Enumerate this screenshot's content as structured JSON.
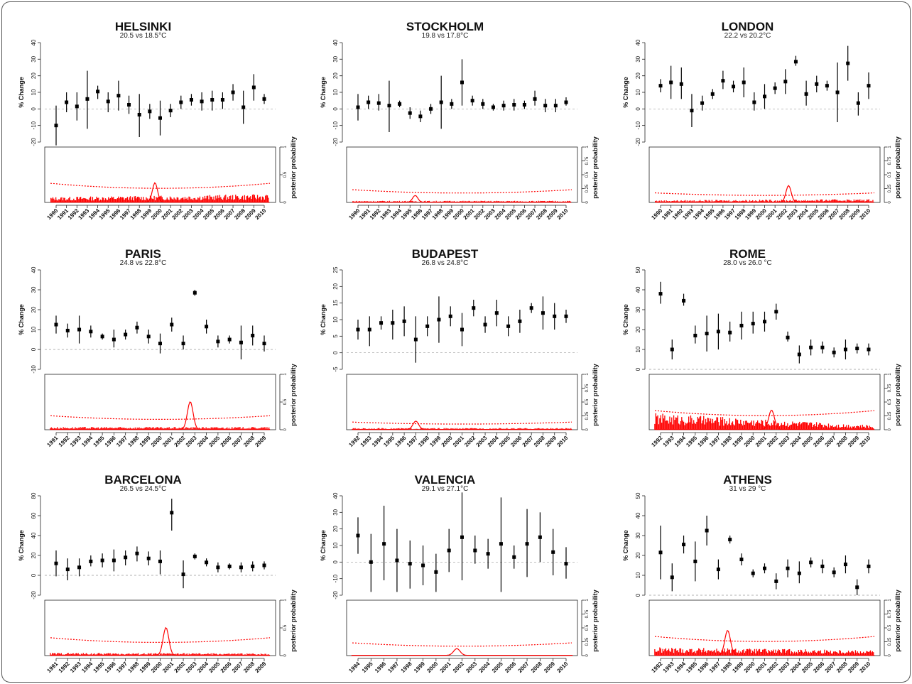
{
  "figure": {
    "color_estimate": "#000000",
    "color_posterior": "#ff0000"
  },
  "chart_data": [
    {
      "type": "scatter",
      "title": "HELSINKI",
      "subtitle": "20.5 vs 18.5°C",
      "ylabel": "% Change",
      "y2label": "posterior probability",
      "ylim": [
        -20,
        40
      ],
      "yticks": [
        "-20",
        "-10",
        "0",
        "10",
        "20",
        "30",
        "40"
      ],
      "yticks_values": [
        -20,
        -10,
        0,
        10,
        20,
        30,
        40
      ],
      "y2ticks": [
        "0",
        "0.5",
        "1"
      ],
      "y2ticks_values": [
        0,
        0.5,
        1
      ],
      "x": [
        "1990",
        "1991",
        "1992",
        "1993",
        "1994",
        "1995",
        "1996",
        "1997",
        "1998",
        "1999",
        "2000",
        "2001",
        "2002",
        "2003",
        "2004",
        "2005",
        "2006",
        "2007",
        "2008",
        "2009",
        "2010"
      ],
      "estimate": [
        -10,
        4,
        1.5,
        6,
        10.5,
        4.5,
        8,
        2.5,
        -3.5,
        -1.5,
        -5.5,
        -1,
        4,
        5.5,
        4.5,
        5.5,
        5.5,
        10,
        1,
        13,
        6
      ],
      "lower": [
        -22,
        -2,
        -7,
        -12,
        6,
        -2,
        -1,
        -3,
        -17,
        -6,
        -16,
        -5,
        0,
        2,
        -1,
        -1,
        0,
        5,
        -9,
        5,
        3
      ],
      "upper": [
        2,
        10,
        10,
        23,
        14,
        10,
        17,
        8,
        9,
        3,
        5,
        3,
        8,
        9,
        10,
        11,
        10,
        15,
        11,
        21,
        9
      ],
      "posterior_peak_year": 1999.5,
      "posterior_peak": 0.35,
      "posterior_threshold": 0.3,
      "posterior_noise": 0.1,
      "posterior_noise_end": 0.15
    },
    {
      "type": "scatter",
      "title": "STOCKHOLM",
      "subtitle": "19.8 vs 17.8°C",
      "ylabel": "% Change",
      "y2label": "posterior probability",
      "ylim": [
        -20,
        40
      ],
      "yticks": [
        "-20",
        "-10",
        "0",
        "10",
        "20",
        "30",
        "40"
      ],
      "yticks_values": [
        -20,
        -10,
        0,
        10,
        20,
        30,
        40
      ],
      "y2ticks": [
        "0",
        "0.25",
        "0.5",
        "0.75",
        "1"
      ],
      "y2ticks_values": [
        0,
        0.25,
        0.5,
        0.75,
        1
      ],
      "x": [
        "1990",
        "1991",
        "1992",
        "1993",
        "1994",
        "1995",
        "1996",
        "1997",
        "1998",
        "1999",
        "2000",
        "2001",
        "2002",
        "2003",
        "2004",
        "2005",
        "2006",
        "2007",
        "2008",
        "2009",
        "2010"
      ],
      "estimate": [
        1,
        4,
        3.5,
        2,
        3,
        -2.5,
        -4.5,
        0,
        4,
        3,
        16,
        5,
        3,
        1,
        2,
        2.5,
        2.5,
        6,
        2,
        2,
        4
      ],
      "lower": [
        -7,
        0,
        -1,
        -14,
        1,
        -6,
        -8,
        -3,
        -12,
        0,
        2,
        2,
        0,
        -1,
        -1,
        -1,
        0,
        2,
        -2,
        -2,
        2
      ],
      "upper": [
        9,
        8,
        9,
        17,
        5,
        1,
        -1,
        3,
        20,
        6,
        30,
        8,
        6,
        3,
        5,
        6,
        5,
        11,
        6,
        6,
        7
      ],
      "posterior_peak_year": 1995.5,
      "posterior_peak": 0.12,
      "posterior_threshold": 0.2,
      "posterior_noise": 0.03,
      "posterior_noise_end": 0.03
    },
    {
      "type": "scatter",
      "title": "LONDON",
      "subtitle": "22.2 vs 20.2°C",
      "ylabel": "% Change",
      "y2label": "posterior probability",
      "ylim": [
        -20,
        40
      ],
      "yticks": [
        "-20",
        "-10",
        "0",
        "10",
        "20",
        "30",
        "40"
      ],
      "yticks_values": [
        -20,
        -10,
        0,
        10,
        20,
        30,
        40
      ],
      "y2ticks": [
        "0",
        "0.25",
        "0.5",
        "0.75",
        "1"
      ],
      "y2ticks_values": [
        0,
        0.25,
        0.5,
        0.75,
        1
      ],
      "x": [
        "1990",
        "1991",
        "1992",
        "1993",
        "1994",
        "1995",
        "1996",
        "1997",
        "1998",
        "1999",
        "2000",
        "2001",
        "2002",
        "2003",
        "2004",
        "2005",
        "2006",
        "2007",
        "2008",
        "2009",
        "2010"
      ],
      "estimate": [
        14,
        16,
        15,
        -1,
        3.5,
        9,
        17,
        13.5,
        16,
        4,
        7.5,
        12.5,
        16.5,
        28.5,
        9,
        15,
        14,
        10,
        27.5,
        3.5,
        14
      ],
      "lower": [
        10,
        6,
        6,
        -11,
        -1,
        6,
        12,
        10,
        7,
        -1,
        0,
        9,
        9,
        26,
        2,
        10,
        11,
        -8,
        17,
        -4,
        6
      ],
      "upper": [
        18,
        26,
        25,
        9,
        8,
        12,
        23,
        17,
        25,
        10,
        15,
        16,
        24,
        32,
        17,
        20,
        17,
        28,
        38,
        10,
        22
      ],
      "posterior_peak_year": 2002.3,
      "posterior_peak": 0.3,
      "posterior_threshold": 0.15,
      "posterior_noise": 0.04,
      "posterior_noise_end": 0.06
    },
    {
      "type": "scatter",
      "title": "PARIS",
      "subtitle": "24.8 vs 22.8°C",
      "ylabel": "% Change",
      "y2label": "posterior probability",
      "ylim": [
        -10,
        40
      ],
      "yticks": [
        "-10",
        "0",
        "10",
        "20",
        "30",
        "40"
      ],
      "yticks_values": [
        -10,
        0,
        10,
        20,
        30,
        40
      ],
      "y2ticks": [
        "0",
        "0.5",
        "1"
      ],
      "y2ticks_values": [
        0,
        0.5,
        1
      ],
      "x": [
        "1991",
        "1992",
        "1993",
        "1994",
        "1995",
        "1996",
        "1997",
        "1998",
        "1999",
        "2000",
        "2001",
        "2002",
        "2003",
        "2004",
        "2005",
        "2006",
        "2007",
        "2008",
        "2009"
      ],
      "estimate": [
        12.5,
        9.5,
        10,
        9,
        6.5,
        5,
        7.5,
        11,
        6.5,
        3,
        12.5,
        3,
        28.5,
        11.5,
        4,
        5,
        3.5,
        7,
        3
      ],
      "lower": [
        8,
        6,
        3,
        6,
        5,
        1,
        5,
        8,
        3,
        -2,
        9,
        0,
        27,
        8,
        1,
        3,
        -5,
        2,
        -1
      ],
      "upper": [
        17,
        13,
        17,
        12,
        8,
        10,
        10,
        14,
        10,
        8,
        16,
        7,
        30,
        15,
        7,
        7,
        12,
        12,
        7
      ],
      "posterior_peak_year": 2002.6,
      "posterior_peak": 0.5,
      "posterior_threshold": 0.22,
      "posterior_noise": 0.05,
      "posterior_noise_end": 0.05
    },
    {
      "type": "scatter",
      "title": "BUDAPEST",
      "subtitle": "26.8 vs 24.8°C",
      "ylabel": "% Change",
      "y2label": "posterior probability",
      "ylim": [
        -5,
        25
      ],
      "yticks": [
        "-5",
        "0",
        "5",
        "10",
        "15",
        "20",
        "25"
      ],
      "yticks_values": [
        -5,
        0,
        5,
        10,
        15,
        20,
        25
      ],
      "y2ticks": [
        "0",
        "0.25",
        "0.5",
        "0.75",
        "1"
      ],
      "y2ticks_values": [
        0,
        0.25,
        0.5,
        0.75,
        1
      ],
      "x": [
        "1992",
        "1993",
        "1994",
        "1995",
        "1996",
        "1997",
        "1998",
        "1999",
        "2000",
        "2001",
        "2002",
        "2003",
        "2004",
        "2005",
        "2006",
        "2007",
        "2008",
        "2009",
        "2010"
      ],
      "estimate": [
        7,
        7,
        9,
        9,
        9.5,
        4,
        8,
        10,
        11,
        7,
        13.5,
        8.5,
        12,
        8,
        9.5,
        13.5,
        12,
        11,
        11
      ],
      "lower": [
        4,
        2,
        7,
        4,
        5,
        -3,
        5,
        3,
        8,
        2,
        11,
        6,
        8,
        5,
        6,
        12,
        7,
        7,
        9
      ],
      "upper": [
        10,
        11,
        11,
        13,
        14,
        11,
        11,
        17,
        14,
        12,
        16,
        11,
        16,
        11,
        13,
        15,
        17,
        15,
        13
      ],
      "posterior_peak_year": 1997,
      "posterior_peak": 0.15,
      "posterior_threshold": 0.12,
      "posterior_noise": 0.03,
      "posterior_noise_end": 0.03
    },
    {
      "type": "scatter",
      "title": "ROME",
      "subtitle": "28.0 vs 26.0 °C",
      "ylabel": "% Change",
      "y2label": "posterior probability",
      "ylim": [
        0,
        50
      ],
      "yticks": [
        "0",
        "10",
        "20",
        "30",
        "40",
        "50"
      ],
      "yticks_values": [
        0,
        10,
        20,
        30,
        40,
        50
      ],
      "y2ticks": [
        "0",
        "0.25",
        "0.5",
        "0.75",
        "1"
      ],
      "y2ticks_values": [
        0,
        0.25,
        0.5,
        0.75,
        1
      ],
      "x": [
        "1992",
        "1993",
        "1994",
        "1995",
        "1996",
        "1997",
        "1998",
        "1999",
        "2000",
        "2001",
        "2002",
        "2003",
        "2004",
        "2005",
        "2006",
        "2007",
        "2008",
        "2009",
        "2010"
      ],
      "estimate": [
        38,
        10,
        34.5,
        17,
        18,
        19,
        18.5,
        22,
        23,
        24,
        29,
        16,
        7.5,
        11,
        11,
        8.5,
        10,
        10.5,
        10
      ],
      "lower": [
        33,
        5,
        32,
        13,
        9,
        10,
        14,
        15,
        18,
        19,
        25,
        14,
        3,
        7,
        8,
        6,
        5,
        8,
        7
      ],
      "upper": [
        44,
        15,
        38,
        22,
        27,
        28,
        24,
        29,
        29,
        29,
        33,
        19,
        12,
        15,
        14,
        11,
        15,
        13,
        13
      ],
      "posterior_peak_year": 2001.6,
      "posterior_peak": 0.35,
      "posterior_threshold": 0.3,
      "posterior_noise": 0.3,
      "posterior_noise_end": 0.08
    },
    {
      "type": "scatter",
      "title": "BARCELONA",
      "subtitle": "26.5 vs 24.5°C",
      "ylabel": "% Change",
      "y2label": "posterior probability",
      "ylim": [
        -20,
        80
      ],
      "yticks": [
        "-20",
        "0",
        "20",
        "40",
        "60",
        "80"
      ],
      "yticks_values": [
        -20,
        0,
        20,
        40,
        60,
        80
      ],
      "y2ticks": [
        "0",
        "0.5",
        "1"
      ],
      "y2ticks_values": [
        0,
        0.5,
        1
      ],
      "x": [
        "1991",
        "1992",
        "1993",
        "1994",
        "1995",
        "1996",
        "1997",
        "1998",
        "1999",
        "2000",
        "2001",
        "2002",
        "2003",
        "2004",
        "2005",
        "2006",
        "2007",
        "2008",
        "2009"
      ],
      "estimate": [
        12,
        6,
        8,
        14,
        15,
        15,
        18,
        22,
        17,
        14,
        63,
        1,
        19,
        13,
        8,
        9,
        8,
        9,
        10
      ],
      "lower": [
        -1,
        -5,
        -1,
        9,
        8,
        4,
        10,
        14,
        10,
        1,
        45,
        -13,
        16,
        9,
        3,
        6,
        3,
        4,
        6
      ],
      "upper": [
        25,
        17,
        17,
        20,
        22,
        26,
        25,
        29,
        24,
        25,
        77,
        15,
        22,
        17,
        13,
        12,
        13,
        14,
        14
      ],
      "posterior_peak_year": 2000.5,
      "posterior_peak": 0.5,
      "posterior_threshold": 0.28,
      "posterior_noise": 0.05,
      "posterior_noise_end": 0.04
    },
    {
      "type": "scatter",
      "title": "VALENCIA",
      "subtitle": "29.1 vs 27.1°C",
      "ylabel": "% Change",
      "y2label": "posterior probability",
      "ylim": [
        -20,
        40
      ],
      "yticks": [
        "-20",
        "-10",
        "0",
        "10",
        "20",
        "30",
        "40"
      ],
      "yticks_values": [
        -20,
        -10,
        0,
        10,
        20,
        30,
        40
      ],
      "y2ticks": [
        "0",
        "0.25",
        "0.5",
        "0.75",
        "1"
      ],
      "y2ticks_values": [
        0,
        0.25,
        0.5,
        0.75,
        1
      ],
      "x": [
        "1994",
        "1995",
        "1996",
        "1997",
        "1998",
        "1999",
        "2000",
        "2001",
        "2002",
        "2003",
        "2004",
        "2005",
        "2006",
        "2007",
        "2008",
        "2009",
        "2010"
      ],
      "estimate": [
        16,
        0,
        11,
        1,
        -1,
        -2,
        -6,
        7,
        15,
        7,
        5,
        11,
        3,
        11,
        15,
        6,
        -1
      ],
      "lower": [
        5,
        -18,
        -11,
        -18,
        -16,
        -14,
        -18,
        -6,
        -11,
        -1,
        -4,
        -18,
        -4,
        -9,
        0,
        -8,
        -10
      ],
      "upper": [
        27,
        17,
        34,
        20,
        13,
        10,
        5,
        20,
        42,
        16,
        14,
        39,
        10,
        32,
        30,
        20,
        9
      ],
      "posterior_peak_year": 2001.6,
      "posterior_peak": 0.12,
      "posterior_threshold": 0.2,
      "posterior_noise": 0.0,
      "posterior_noise_end": 0.0
    },
    {
      "type": "scatter",
      "title": "ATHENS",
      "subtitle": "31 vs 29 °C",
      "ylabel": "% Change",
      "y2label": "posterior probability",
      "ylim": [
        0,
        50
      ],
      "yticks": [
        "0",
        "10",
        "20",
        "30",
        "40",
        "50"
      ],
      "yticks_values": [
        0,
        10,
        20,
        30,
        40,
        50
      ],
      "y2ticks": [
        "0",
        "0.25",
        "0.5",
        "0.75",
        "1"
      ],
      "y2ticks_values": [
        0,
        0.25,
        0.5,
        0.75,
        1
      ],
      "x": [
        "1992",
        "1993",
        "1994",
        "1995",
        "1996",
        "1997",
        "1998",
        "1999",
        "2000",
        "2001",
        "2002",
        "2003",
        "2004",
        "2005",
        "2006",
        "2007",
        "2008",
        "2009",
        "2010"
      ],
      "estimate": [
        21.5,
        9,
        25.5,
        17,
        32.5,
        13,
        28,
        18,
        11,
        13.5,
        7,
        13.5,
        11,
        16.5,
        14.5,
        11.5,
        15.5,
        4,
        14.5
      ],
      "lower": [
        8,
        2,
        21,
        7,
        25,
        8,
        26,
        15,
        9,
        11,
        3,
        9,
        6,
        14,
        11,
        9,
        11,
        0,
        11
      ],
      "upper": [
        35,
        16,
        30,
        27,
        40,
        18,
        30,
        21,
        13,
        16,
        11,
        18,
        17,
        19,
        18,
        14,
        20,
        8,
        18
      ],
      "posterior_peak_year": 1997.8,
      "posterior_peak": 0.45,
      "posterior_threshold": 0.3,
      "posterior_noise": 0.15,
      "posterior_noise_end": 0.1
    }
  ]
}
